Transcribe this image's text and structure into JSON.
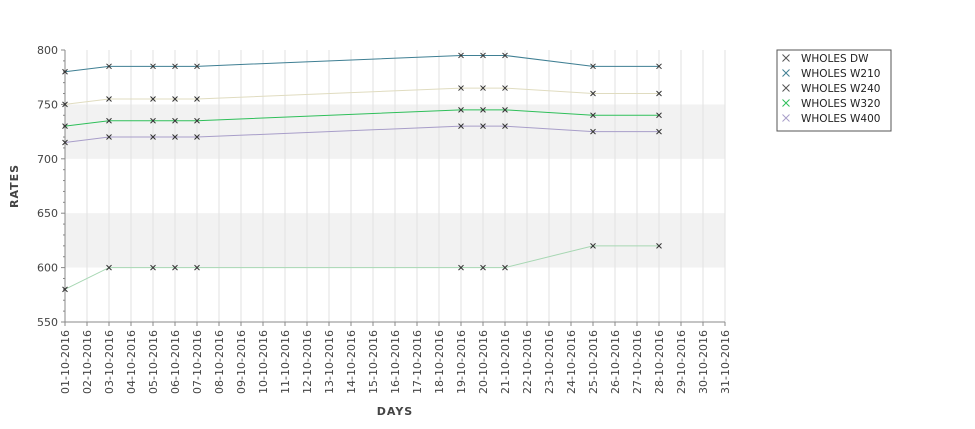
{
  "chart_data": {
    "type": "line",
    "xlabel": "DAYS",
    "ylabel": "RATES",
    "ylim": [
      550,
      800
    ],
    "yticks": [
      550,
      600,
      650,
      700,
      750,
      800
    ],
    "y_bands": [
      [
        600,
        650
      ],
      [
        700,
        750
      ]
    ],
    "grid": true,
    "legend_position": "top-right",
    "x_dates": [
      "01-10-2016",
      "02-10-2016",
      "03-10-2016",
      "04-10-2016",
      "05-10-2016",
      "06-10-2016",
      "07-10-2016",
      "08-10-2016",
      "09-10-2016",
      "10-10-2016",
      "11-10-2016",
      "12-10-2016",
      "13-10-2016",
      "14-10-2016",
      "15-10-2016",
      "16-10-2016",
      "17-10-2016",
      "18-10-2016",
      "19-10-2016",
      "20-10-2016",
      "21-10-2016",
      "22-10-2016",
      "23-10-2016",
      "24-10-2016",
      "25-10-2016",
      "26-10-2016",
      "27-10-2016",
      "28-10-2016",
      "29-10-2016",
      "30-10-2016",
      "31-10-2016"
    ],
    "series": [
      {
        "name": "WHOLES DW",
        "color": "#a7d7b3",
        "x": [
          "01-10-2016",
          "03-10-2016",
          "05-10-2016",
          "06-10-2016",
          "07-10-2016",
          "19-10-2016",
          "20-10-2016",
          "21-10-2016",
          "25-10-2016",
          "28-10-2016"
        ],
        "values": [
          580,
          600,
          600,
          600,
          600,
          600,
          600,
          600,
          620,
          620
        ]
      },
      {
        "name": "WHOLES W210",
        "color": "#3f7f93",
        "x": [
          "01-10-2016",
          "03-10-2016",
          "05-10-2016",
          "06-10-2016",
          "07-10-2016",
          "19-10-2016",
          "20-10-2016",
          "21-10-2016",
          "25-10-2016",
          "28-10-2016"
        ],
        "values": [
          780,
          785,
          785,
          785,
          785,
          795,
          795,
          795,
          785,
          785
        ]
      },
      {
        "name": "WHOLES W240",
        "color": "#e0dcc0",
        "x": [
          "01-10-2016",
          "03-10-2016",
          "05-10-2016",
          "06-10-2016",
          "07-10-2016",
          "19-10-2016",
          "20-10-2016",
          "21-10-2016",
          "25-10-2016",
          "28-10-2016"
        ],
        "values": [
          750,
          755,
          755,
          755,
          755,
          765,
          765,
          765,
          760,
          760
        ]
      },
      {
        "name": "WHOLES W320",
        "color": "#2fbf5a",
        "x": [
          "01-10-2016",
          "03-10-2016",
          "05-10-2016",
          "06-10-2016",
          "07-10-2016",
          "19-10-2016",
          "20-10-2016",
          "21-10-2016",
          "25-10-2016",
          "28-10-2016"
        ],
        "values": [
          730,
          735,
          735,
          735,
          735,
          745,
          745,
          745,
          740,
          740
        ]
      },
      {
        "name": "WHOLES W400",
        "color": "#a89ec9",
        "x": [
          "01-10-2016",
          "03-10-2016",
          "05-10-2016",
          "06-10-2016",
          "07-10-2016",
          "19-10-2016",
          "20-10-2016",
          "21-10-2016",
          "25-10-2016",
          "28-10-2016"
        ],
        "values": [
          715,
          720,
          720,
          720,
          720,
          730,
          730,
          730,
          725,
          725
        ]
      }
    ]
  }
}
